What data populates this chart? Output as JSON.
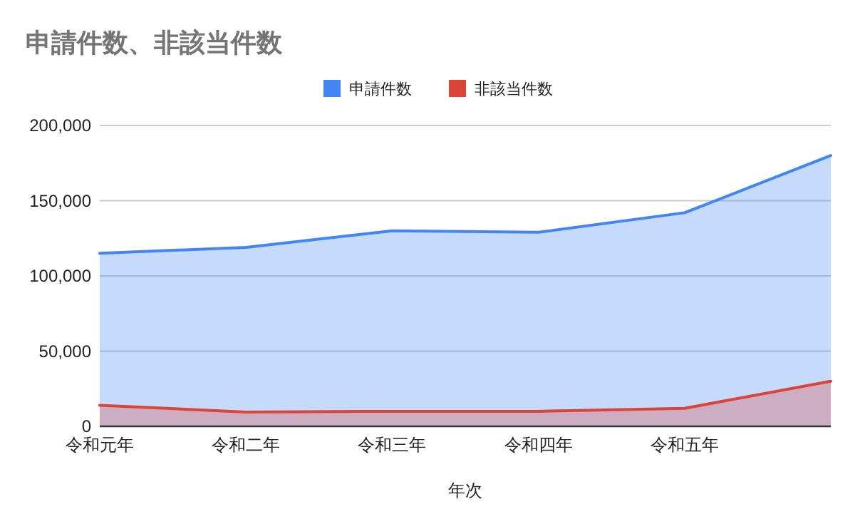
{
  "chart_data": {
    "type": "area",
    "title": "申請件数、非該当件数",
    "xlabel": "年次",
    "categories": [
      "令和元年",
      "令和二年",
      "令和三年",
      "令和四年",
      "令和五年",
      null
    ],
    "series": [
      {
        "name": "申請件数",
        "color": "#4285f4",
        "values": [
          115000,
          119000,
          130000,
          129000,
          142000,
          180000
        ]
      },
      {
        "name": "非該当件数",
        "color": "#db4437",
        "values": [
          14000,
          9500,
          10000,
          10000,
          12000,
          30000
        ]
      }
    ],
    "ylim": [
      0,
      200000
    ],
    "yticks": [
      0,
      {
        "value": 50000,
        "label": "50,000"
      },
      {
        "value": 100000,
        "label": "100,000"
      },
      {
        "value": 150000,
        "label": "150,000"
      },
      {
        "value": 200000,
        "label": "200,000"
      }
    ],
    "grid": "y",
    "legend": "top"
  }
}
